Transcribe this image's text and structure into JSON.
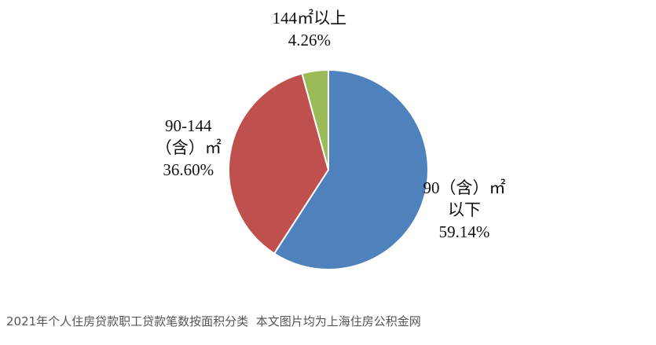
{
  "chart_data": {
    "type": "pie",
    "categories": [
      "90（含）㎡\n以下",
      "90-144\n（含）㎡",
      "144㎡以上"
    ],
    "values": [
      59.14,
      36.6,
      4.26
    ],
    "value_labels": [
      "59.14%",
      "36.60%",
      "4.26%"
    ],
    "colors": [
      "#4f81bd",
      "#c0504d",
      "#9bbb59"
    ],
    "caption": "2021年个人住房贷款职工贷款笔数按面积分类  本文图片均为上海住房公积金网"
  }
}
